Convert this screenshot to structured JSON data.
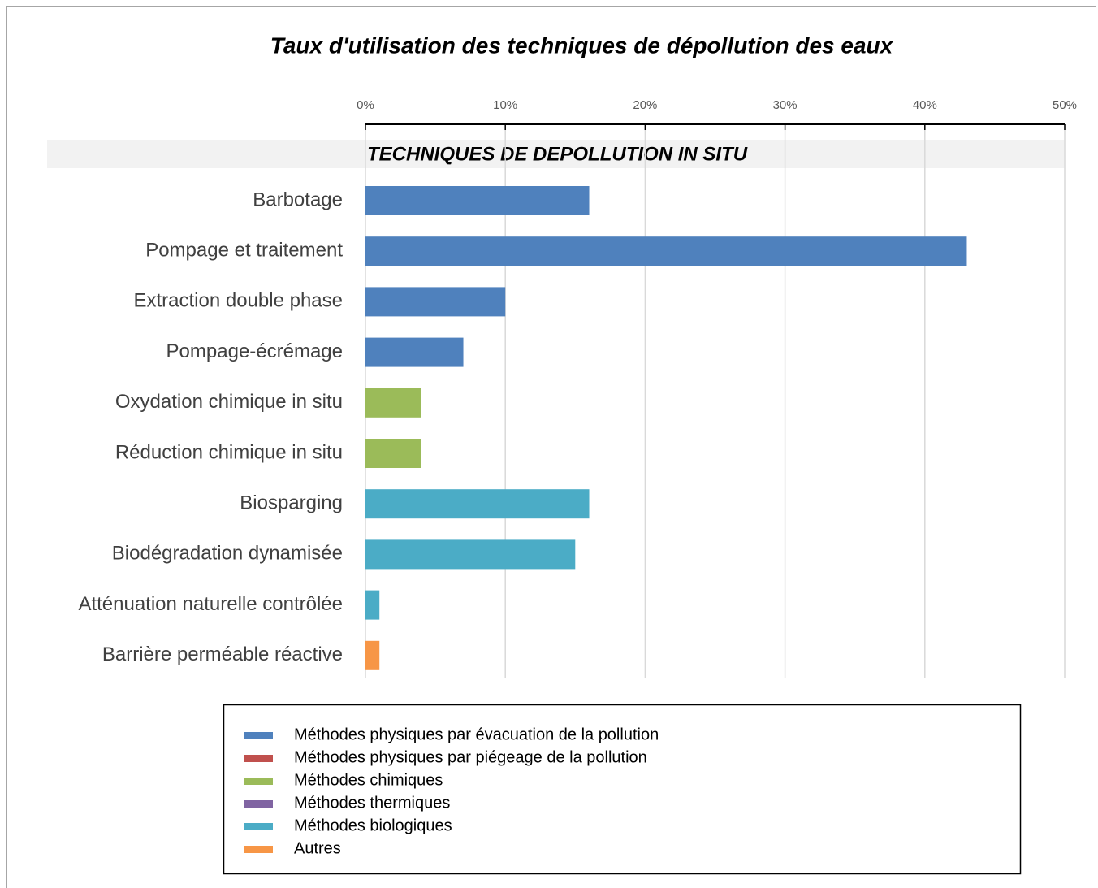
{
  "chart_data": {
    "type": "hbar",
    "title": "Taux d'utilisation des techniques de dépollution des eaux",
    "section_label": "TECHNIQUES DE DEPOLLUTION IN SITU",
    "categories": [
      "Barbotage",
      "Pompage et traitement",
      "Extraction double phase",
      "Pompage-écrémage",
      "Oxydation chimique in situ",
      "Réduction chimique in situ",
      "Biosparging",
      "Biodégradation dynamisée",
      "Atténuation naturelle contrôlée",
      "Barrière perméable réactive"
    ],
    "series": [
      {
        "name": "Méthodes physiques par évacuation de la pollution",
        "color": "#4f81bd",
        "values": [
          16,
          43,
          10,
          7,
          null,
          null,
          null,
          null,
          null,
          null
        ]
      },
      {
        "name": "Méthodes physiques par piégeage de la pollution",
        "color": "#c0504d",
        "values": [
          null,
          null,
          null,
          null,
          null,
          null,
          null,
          null,
          null,
          null
        ]
      },
      {
        "name": "Méthodes chimiques",
        "color": "#9bbb59",
        "values": [
          null,
          null,
          null,
          null,
          4,
          4,
          null,
          null,
          null,
          null
        ]
      },
      {
        "name": "Méthodes thermiques",
        "color": "#8064a2",
        "values": [
          null,
          null,
          null,
          null,
          null,
          null,
          null,
          null,
          null,
          null
        ]
      },
      {
        "name": "Méthodes biologiques",
        "color": "#4bacc6",
        "values": [
          null,
          null,
          null,
          null,
          null,
          null,
          16,
          15,
          1,
          null
        ]
      },
      {
        "name": "Autres",
        "color": "#f79646",
        "values": [
          null,
          null,
          null,
          null,
          null,
          null,
          null,
          null,
          null,
          1
        ]
      }
    ],
    "xlim": [
      0,
      50
    ],
    "xticks": [
      {
        "value": 0,
        "label": "0%"
      },
      {
        "value": 10,
        "label": "10%"
      },
      {
        "value": 20,
        "label": "20%"
      },
      {
        "value": 30,
        "label": "30%"
      },
      {
        "value": 40,
        "label": "40%"
      },
      {
        "value": 50,
        "label": "50%"
      }
    ],
    "grid": true
  }
}
